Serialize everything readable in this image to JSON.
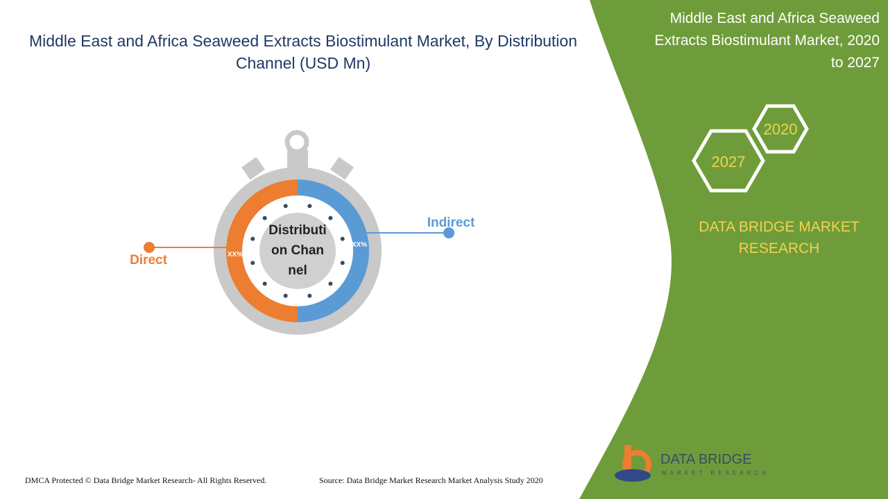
{
  "header": {
    "title": "Middle East and Africa Seaweed Extracts Biostimulant Market, By Distribution Channel (USD Mn)"
  },
  "side_panel": {
    "title": "Middle East and Africa Seaweed Extracts Biostimulant Market, 2020 to 2027",
    "years": [
      "2020",
      "2027"
    ],
    "brand": "DATA BRIDGE MARKET RESEARCH"
  },
  "diagram": {
    "center_label": "Distribution Channel",
    "segments": [
      {
        "name": "Direct",
        "label": "XX%"
      },
      {
        "name": "Indirect",
        "label": "XX%"
      }
    ]
  },
  "logo": {
    "name": "DATA BRIDGE",
    "tagline": "MARKET RESEARCH"
  },
  "footer": {
    "copyright": "DMCA Protected © Data Bridge Market Research- All Rights Reserved.",
    "source": "Source: Data Bridge Market Research Market Analysis Study 2020"
  }
}
